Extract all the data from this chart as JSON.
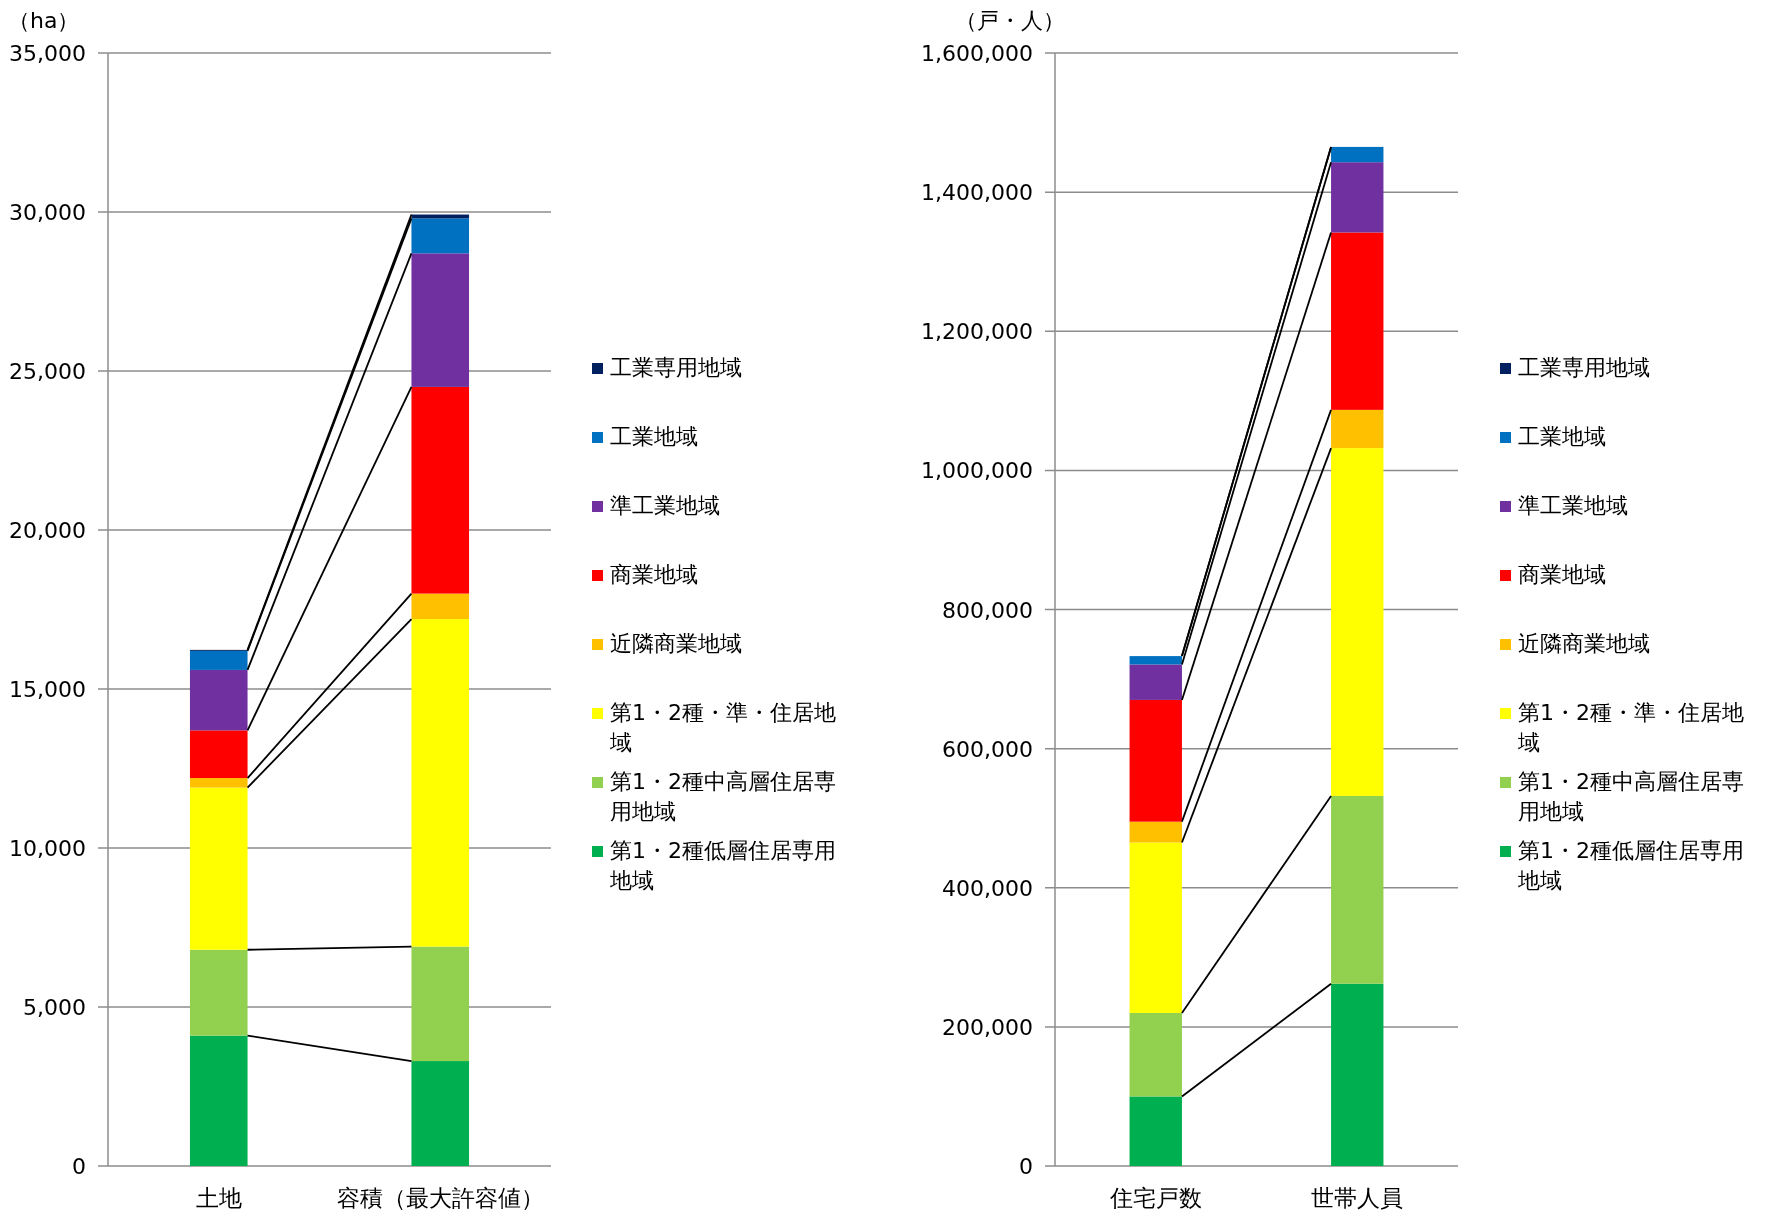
{
  "chart_data": [
    {
      "type": "bar",
      "stacked": true,
      "ylabel": "（ha）",
      "categories": [
        "土地",
        "容積（最大許容値）"
      ],
      "ylim": [
        0,
        35000
      ],
      "yticks": [
        {
          "value": 0,
          "label": "0"
        },
        {
          "value": 5000,
          "label": "5,000"
        },
        {
          "value": 10000,
          "label": "10,000"
        },
        {
          "value": 15000,
          "label": "15,000"
        },
        {
          "value": 20000,
          "label": "20,000"
        },
        {
          "value": 25000,
          "label": "25,000"
        },
        {
          "value": 30000,
          "label": "30,000"
        },
        {
          "value": 35000,
          "label": "35,000"
        }
      ],
      "grid": "y",
      "legend": "right",
      "series": [
        {
          "name": "第1・2種低層住居専用地域",
          "color": "#00b050",
          "values": [
            4100,
            3300
          ]
        },
        {
          "name": "第1・2種中高層住居専用地域",
          "color": "#92d050",
          "values": [
            2700,
            3600
          ]
        },
        {
          "name": "第1・2種・準・住居地域",
          "color": "#ffff00",
          "values": [
            5100,
            10300
          ]
        },
        {
          "name": "近隣商業地域",
          "color": "#ffc000",
          "values": [
            300,
            800
          ]
        },
        {
          "name": "商業地域",
          "color": "#ff0000",
          "values": [
            1500,
            6500
          ]
        },
        {
          "name": "準工業地域",
          "color": "#7030a0",
          "values": [
            1900,
            4200
          ]
        },
        {
          "name": "工業地域",
          "color": "#0070c0",
          "values": [
            600,
            1100
          ]
        },
        {
          "name": "工業専用地域",
          "color": "#002060",
          "values": [
            30,
            120
          ]
        }
      ]
    },
    {
      "type": "bar",
      "stacked": true,
      "ylabel": "（戸・人）",
      "categories": [
        "住宅戸数",
        "世帯人員"
      ],
      "ylim": [
        0,
        1600000
      ],
      "yticks": [
        {
          "value": 0,
          "label": "0"
        },
        {
          "value": 200000,
          "label": "200,000"
        },
        {
          "value": 400000,
          "label": "400,000"
        },
        {
          "value": 600000,
          "label": "600,000"
        },
        {
          "value": 800000,
          "label": "800,000"
        },
        {
          "value": 1000000,
          "label": "1,000,000"
        },
        {
          "value": 1200000,
          "label": "1,200,000"
        },
        {
          "value": 1400000,
          "label": "1,400,000"
        },
        {
          "value": 1600000,
          "label": "1,600,000"
        }
      ],
      "grid": "y",
      "legend": "right",
      "series": [
        {
          "name": "第1・2種低層住居専用地域",
          "color": "#00b050",
          "values": [
            100000,
            262000
          ]
        },
        {
          "name": "第1・2種中高層住居専用地域",
          "color": "#92d050",
          "values": [
            120000,
            270000
          ]
        },
        {
          "name": "第1・2種・準・住居地域",
          "color": "#ffff00",
          "values": [
            245000,
            500000
          ]
        },
        {
          "name": "近隣商業地域",
          "color": "#ffc000",
          "values": [
            30000,
            55000
          ]
        },
        {
          "name": "商業地域",
          "color": "#ff0000",
          "values": [
            175000,
            255000
          ]
        },
        {
          "name": "準工業地域",
          "color": "#7030a0",
          "values": [
            51000,
            101000
          ]
        },
        {
          "name": "工業地域",
          "color": "#0070c0",
          "values": [
            12000,
            22000
          ]
        },
        {
          "name": "工業専用地域",
          "color": "#002060",
          "values": [
            0,
            0
          ]
        }
      ]
    }
  ]
}
